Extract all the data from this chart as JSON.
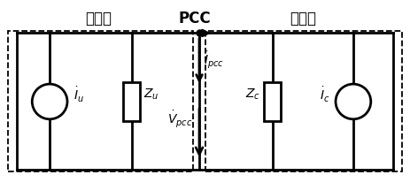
{
  "title_left": "系统侧",
  "title_center": "PCC",
  "title_right": "用户侧",
  "label_Iu": "$\\dot{I}_u$",
  "label_Zu": "$Z_u$",
  "label_Ipcc": "$\\dot{I}_{pcc}$",
  "label_Vpcc": "$\\dot{V}_{pcc}$",
  "label_Zc": "$Z_c$",
  "label_Ic": "$\\dot{I}_c$",
  "bg_color": "white",
  "line_color": "black"
}
